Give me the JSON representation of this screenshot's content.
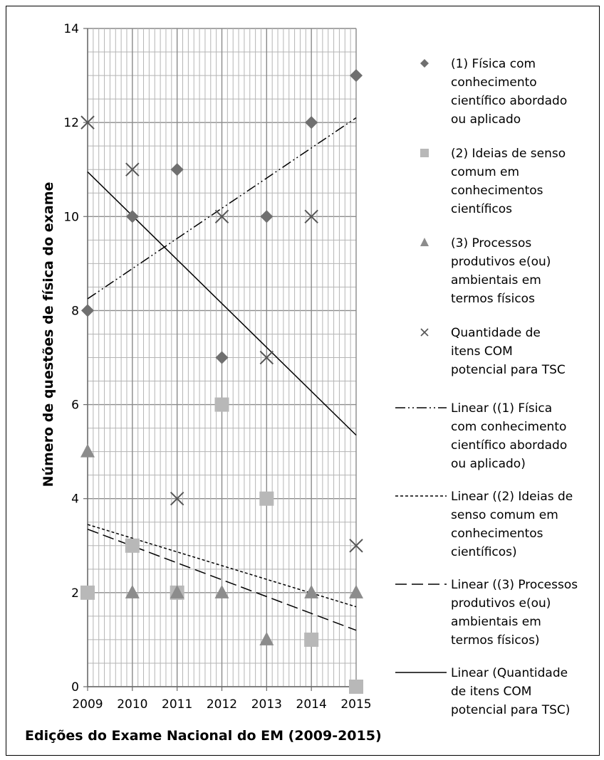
{
  "chart_data": {
    "type": "scatter",
    "xlabel": "Edições do Exame Nacional do EM (2009-2015)",
    "ylabel": "Número de questões de física do exame",
    "x": [
      2009,
      2010,
      2011,
      2012,
      2013,
      2014,
      2015
    ],
    "xlim": [
      2009,
      2015
    ],
    "ylim": [
      0,
      14
    ],
    "yticks": [
      0,
      2,
      4,
      6,
      8,
      10,
      12,
      14
    ],
    "grid": true,
    "legend_position": "right",
    "series": [
      {
        "name": "(1) Física com conhecimento científico abordado ou aplicado",
        "legend_lines": [
          "(1) Física com",
          "conhecimento",
          "científico abordado",
          "ou aplicado"
        ],
        "marker": "diamond",
        "color": "#6f6f6f",
        "values": [
          8,
          10,
          11,
          7,
          10,
          12,
          13
        ]
      },
      {
        "name": "(2) Ideias de senso comum em conhecimentos científicos",
        "legend_lines": [
          "(2) Ideias de senso",
          "comum em",
          "conhecimentos",
          "científicos"
        ],
        "marker": "square",
        "color": "#b8b8b8",
        "values": [
          2,
          3,
          2,
          6,
          4,
          1,
          0
        ]
      },
      {
        "name": "(3) Processos produtivos e(ou) ambientais em termos físicos",
        "legend_lines": [
          "(3) Processos",
          "produtivos e(ou)",
          "ambientais em",
          "termos físicos"
        ],
        "marker": "triangle",
        "color": "#8c8c8c",
        "values": [
          5,
          2,
          2,
          2,
          1,
          2,
          2
        ]
      },
      {
        "name": "Quantidade de itens COM potencial para TSC",
        "legend_lines": [
          "Quantidade de",
          "itens COM",
          "potencial para TSC"
        ],
        "marker": "x",
        "color": "#555555",
        "values": [
          12,
          11,
          4,
          10,
          7,
          10,
          3
        ]
      }
    ],
    "trendlines": [
      {
        "name": "Linear ((1) Física com conhecimento científico abordado ou aplicado)",
        "legend_lines": [
          "Linear ((1) Física",
          "com conhecimento",
          "científico abordado",
          "ou aplicado)"
        ],
        "dash": "dashdotdot",
        "from": [
          2009,
          8.25
        ],
        "to": [
          2015,
          12.1
        ]
      },
      {
        "name": "Linear ((2) Ideias de senso comum em conhecimentos científicos)",
        "legend_lines": [
          "Linear ((2) Ideias de",
          "senso comum em",
          "conhecimentos",
          "científicos)"
        ],
        "dash": "dotted",
        "from": [
          2009,
          3.45
        ],
        "to": [
          2015,
          1.7
        ]
      },
      {
        "name": "Linear ((3) Processos produtivos e(ou) ambientais em termos físicos)",
        "legend_lines": [
          "Linear ((3) Processos",
          "produtivos e(ou)",
          "ambientais em",
          "termos físicos)"
        ],
        "dash": "longdash",
        "from": [
          2009,
          3.35
        ],
        "to": [
          2015,
          1.2
        ]
      },
      {
        "name": "Linear (Quantidade de itens COM potencial para TSC)",
        "legend_lines": [
          "Linear (Quantidade",
          "de itens COM",
          "potencial para TSC)"
        ],
        "dash": "solid",
        "from": [
          2009,
          10.95
        ],
        "to": [
          2015,
          5.35
        ]
      }
    ]
  }
}
